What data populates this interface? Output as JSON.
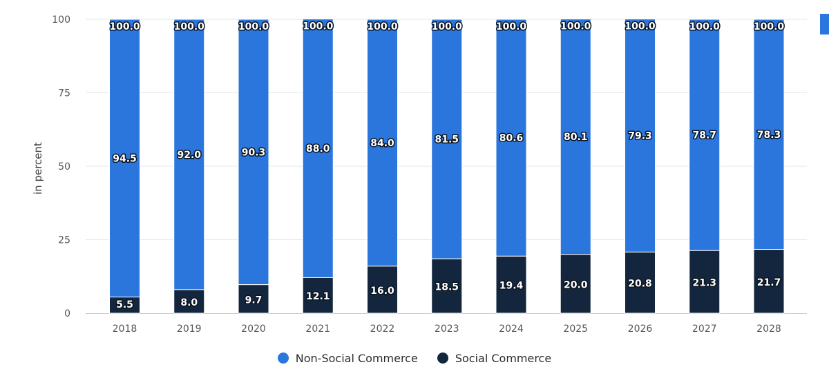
{
  "chart_data": {
    "type": "bar",
    "stacked": true,
    "title": "",
    "xlabel": "",
    "ylabel": "in percent",
    "ylim": [
      0,
      100
    ],
    "yticks": [
      "0",
      "25",
      "50",
      "75",
      "100"
    ],
    "categories": [
      "2018",
      "2019",
      "2020",
      "2021",
      "2022",
      "2023",
      "2024",
      "2025",
      "2026",
      "2027",
      "2028"
    ],
    "series": [
      {
        "name": "Social Commerce",
        "color": "#13263d",
        "values": [
          5.5,
          8.0,
          9.7,
          12.1,
          16.0,
          18.5,
          19.4,
          20.0,
          20.8,
          21.3,
          21.7
        ],
        "labels": [
          "5.5",
          "8.0",
          "9.7",
          "12.1",
          "16.0",
          "18.5",
          "19.4",
          "20.0",
          "20.8",
          "21.3",
          "21.7"
        ]
      },
      {
        "name": "Non-Social Commerce",
        "color": "#2a76dd",
        "values": [
          94.5,
          92.0,
          90.3,
          88.0,
          84.0,
          81.5,
          80.6,
          80.1,
          79.3,
          78.7,
          78.3
        ],
        "labels": [
          "94.5",
          "92.0",
          "90.3",
          "88.0",
          "84.0",
          "81.5",
          "80.6",
          "80.1",
          "79.3",
          "78.7",
          "78.3"
        ]
      }
    ],
    "totals": [
      "100.0",
      "100.0",
      "100.0",
      "100.0",
      "100.0",
      "100.0",
      "100.0",
      "100.0",
      "100.0",
      "100.0",
      "100.0"
    ],
    "grid": true,
    "legend_position": "bottom"
  },
  "legend": {
    "items": [
      {
        "label": "Non-Social Commerce",
        "color": "#2a76dd"
      },
      {
        "label": "Social Commerce",
        "color": "#13263d"
      }
    ]
  }
}
